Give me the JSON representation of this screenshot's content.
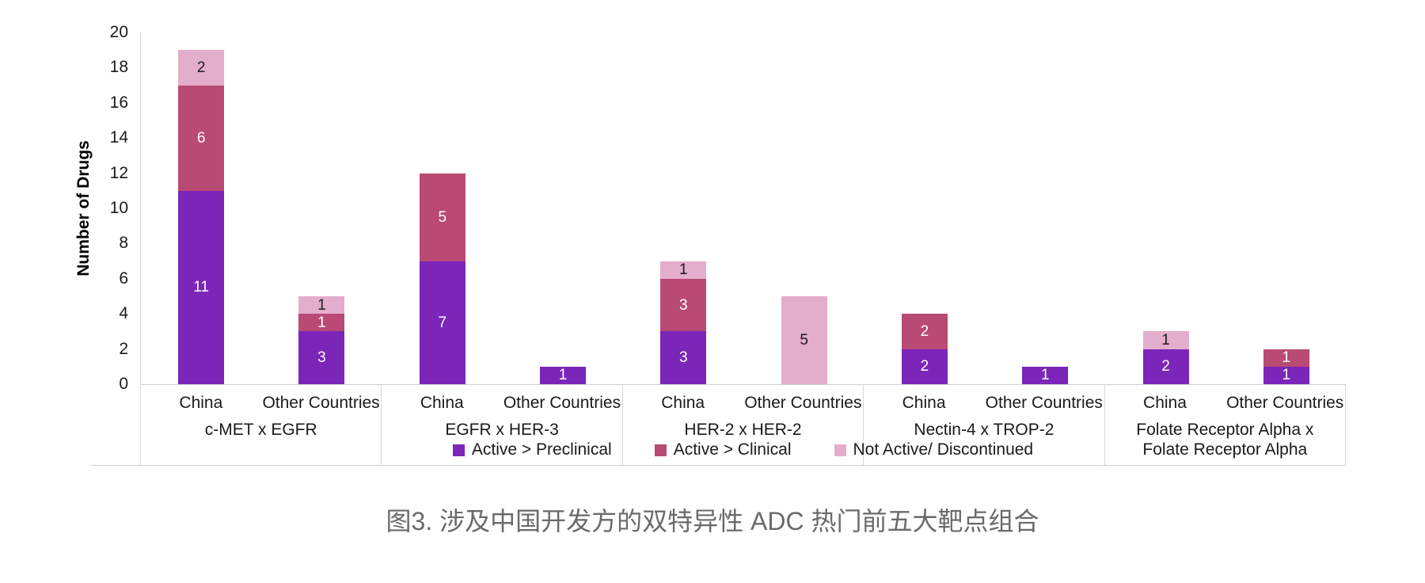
{
  "title": "图3. 涉及中国开发方的双特异性 ADC 热门前五大靶点组合",
  "chart_data": {
    "type": "bar",
    "stacked": true,
    "title": "图3. 涉及中国开发方的双特异性 ADC 热门前五大靶点组合",
    "xlabel": "",
    "ylabel": "Number of Drugs",
    "ylim": [
      0,
      20
    ],
    "ytick_step": 2,
    "grid": false,
    "legend_position": "bottom",
    "group_labels": [
      "c-MET x EGFR",
      "EGFR x HER-3",
      "HER-2 x HER-2",
      "Nectin-4 x TROP-2",
      "Folate Receptor Alpha x Folate Receptor Alpha"
    ],
    "categories_per_group": [
      "China",
      "Other Countries"
    ],
    "categories_flat": [
      "China",
      "Other Countries",
      "China",
      "Other Countries",
      "China",
      "Other Countries",
      "China",
      "Other Countries",
      "China",
      "Other Countries"
    ],
    "series": [
      {
        "name": "Active > Preclinical",
        "color": "#7B26B9",
        "label_color": "#ffffff",
        "values": [
          11,
          3,
          7,
          1,
          3,
          0,
          2,
          1,
          2,
          1
        ]
      },
      {
        "name": "Active > Clinical",
        "color": "#B94A74",
        "label_color": "#ffffff",
        "values": [
          6,
          1,
          5,
          0,
          3,
          0,
          2,
          0,
          0,
          1
        ]
      },
      {
        "name": "Not Active/ Discontinued",
        "color": "#E3AECB",
        "label_color": "#1a1a1a",
        "values": [
          2,
          1,
          0,
          0,
          1,
          5,
          0,
          0,
          1,
          0
        ]
      }
    ],
    "bar_totals": [
      19,
      5,
      12,
      1,
      7,
      5,
      4,
      1,
      3,
      2
    ]
  },
  "colors": {
    "axis_line": "#cfcfcf",
    "divider_line": "#d9d9d9",
    "title_text": "#6a6a6a"
  }
}
